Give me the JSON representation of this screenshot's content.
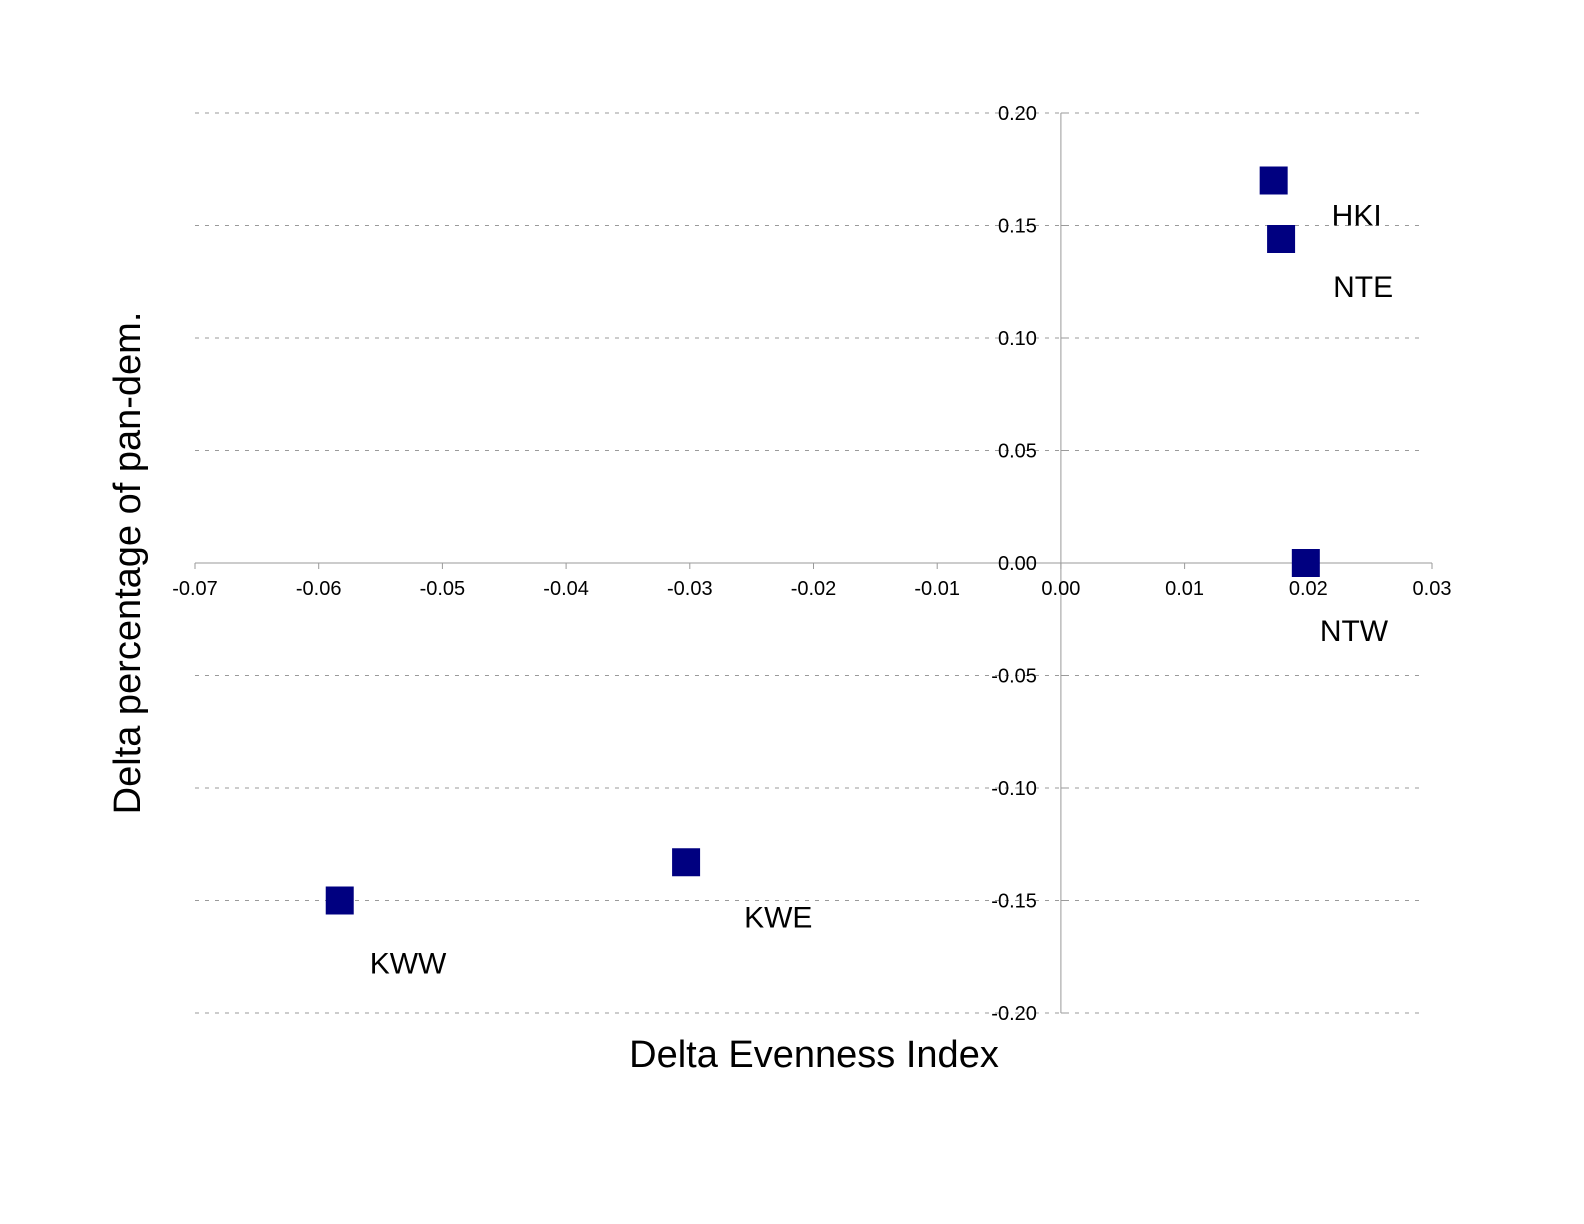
{
  "chart_data": {
    "type": "scatter",
    "title": "",
    "xlabel": "Delta Evenness Index",
    "ylabel": "Delta percentage of pan-dem.",
    "xlim": [
      -0.07,
      0.03
    ],
    "ylim": [
      -0.2,
      0.2
    ],
    "x_ticks": [
      "-0.07",
      "-0.06",
      "-0.05",
      "-0.04",
      "-0.03",
      "-0.02",
      "-0.01",
      "0.00",
      "0.01",
      "0.02",
      "0.03"
    ],
    "y_ticks": [
      "0.20",
      "0.15",
      "0.10",
      "0.05",
      "0.00",
      "-0.05",
      "-0.10",
      "-0.15",
      "-0.20"
    ],
    "grid": "horizontal-dashed",
    "marker": "square",
    "marker_color": "#000080",
    "points": [
      {
        "label": "HKI",
        "x": 0.0172,
        "y": 0.17
      },
      {
        "label": "NTE",
        "x": 0.0178,
        "y": 0.144
      },
      {
        "label": "NTW",
        "x": 0.0198,
        "y": 0.0
      },
      {
        "label": "KWE",
        "x": -0.0303,
        "y": -0.133
      },
      {
        "label": "KWW",
        "x": -0.0583,
        "y": -0.15
      }
    ]
  }
}
